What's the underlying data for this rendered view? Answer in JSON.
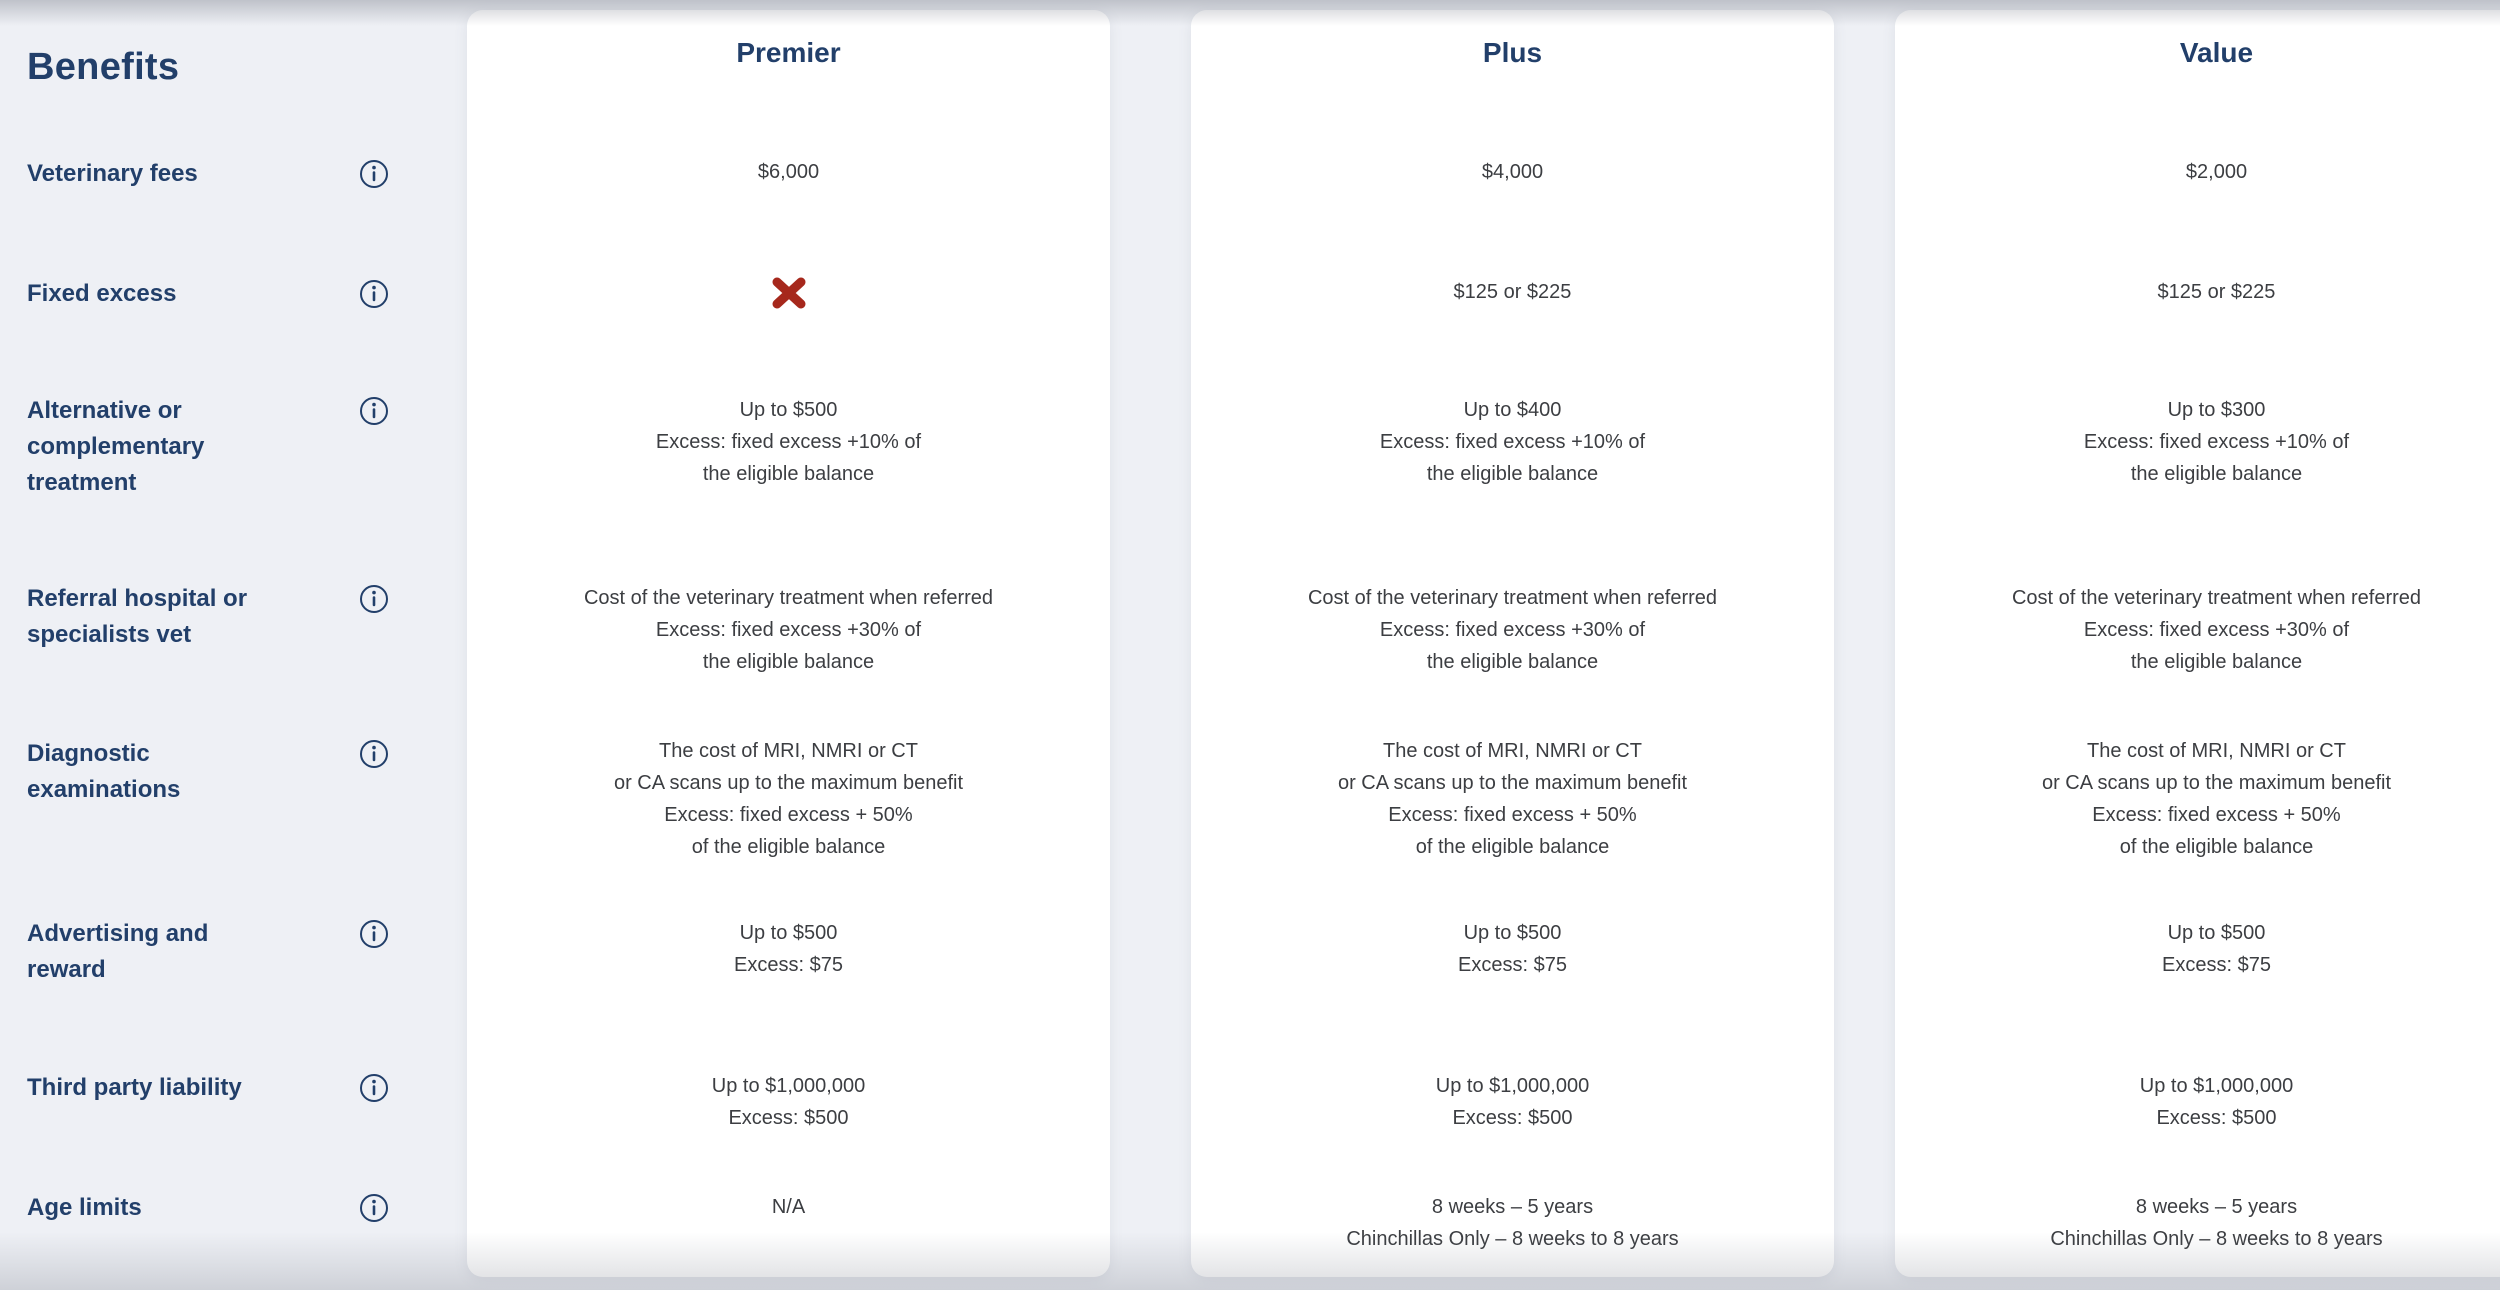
{
  "header": {
    "title": "Benefits"
  },
  "colors": {
    "brand_navy": "#223f6a",
    "body_text": "#3c3e42",
    "not_covered_red": "#a6281c",
    "page_background": "#eef0f5",
    "card_background": "#ffffff"
  },
  "icons": {
    "info": "info-circle-icon",
    "not_covered": "x-mark-icon"
  },
  "labels": [
    {
      "id": "veterinary-fees",
      "lines": [
        "Veterinary fees"
      ]
    },
    {
      "id": "fixed-excess",
      "lines": [
        "Fixed excess"
      ]
    },
    {
      "id": "alternative-or-complementary-treatment",
      "lines": [
        "Alternative or",
        "complementary",
        "treatment"
      ]
    },
    {
      "id": "referral-hospital-or-specialists-vet",
      "lines": [
        "Referral hospital or",
        "specialists vet"
      ]
    },
    {
      "id": "diagnostic-examinations",
      "lines": [
        "Diagnostic",
        "examinations"
      ]
    },
    {
      "id": "advertising-and-reward",
      "lines": [
        "Advertising and",
        "reward"
      ]
    },
    {
      "id": "third-party-liability",
      "lines": [
        "Third party liability"
      ]
    },
    {
      "id": "age-limits",
      "lines": [
        "Age limits"
      ]
    }
  ],
  "plans": [
    {
      "name": "Premier",
      "rows": [
        {
          "lines": [
            "$6,000"
          ]
        },
        {
          "icon": "x-mark",
          "meaning": "not covered"
        },
        {
          "lines": [
            "Up to $500",
            "Excess: fixed excess +10% of",
            "the eligible balance"
          ]
        },
        {
          "lines": [
            "Cost of the veterinary treatment when referred",
            "Excess: fixed excess +30% of",
            "the eligible balance"
          ]
        },
        {
          "lines": [
            "The cost of MRI, NMRI or CT",
            "or CA scans up to the maximum benefit",
            "Excess: fixed excess + 50%",
            "of the eligible balance"
          ]
        },
        {
          "lines": [
            "Up to $500",
            "Excess: $75"
          ]
        },
        {
          "lines": [
            "Up to $1,000,000",
            "Excess: $500"
          ]
        },
        {
          "lines": [
            "N/A"
          ]
        }
      ]
    },
    {
      "name": "Plus",
      "rows": [
        {
          "lines": [
            "$4,000"
          ]
        },
        {
          "lines": [
            "$125 or $225"
          ]
        },
        {
          "lines": [
            "Up to $400",
            "Excess: fixed excess +10% of",
            "the eligible balance"
          ]
        },
        {
          "lines": [
            "Cost of the veterinary treatment when referred",
            "Excess: fixed excess +30% of",
            "the eligible balance"
          ]
        },
        {
          "lines": [
            "The cost of MRI, NMRI or CT",
            "or CA scans up to the maximum benefit",
            "Excess: fixed excess + 50%",
            "of the eligible balance"
          ]
        },
        {
          "lines": [
            "Up to $500",
            "Excess: $75"
          ]
        },
        {
          "lines": [
            "Up to $1,000,000",
            "Excess: $500"
          ]
        },
        {
          "lines": [
            "8 weeks – 5 years",
            "Chinchillas Only – 8 weeks to 8 years"
          ]
        }
      ]
    },
    {
      "name": "Value",
      "rows": [
        {
          "lines": [
            "$2,000"
          ]
        },
        {
          "lines": [
            "$125 or $225"
          ]
        },
        {
          "lines": [
            "Up to $300",
            "Excess: fixed excess +10% of",
            "the eligible balance"
          ]
        },
        {
          "lines": [
            "Cost of the veterinary treatment when referred",
            "Excess: fixed excess +30% of",
            "the eligible balance"
          ]
        },
        {
          "lines": [
            "The cost of MRI, NMRI or CT",
            "or CA scans up to the maximum benefit",
            "Excess: fixed excess + 50%",
            "of the eligible balance"
          ]
        },
        {
          "lines": [
            "Up to $500",
            "Excess: $75"
          ]
        },
        {
          "lines": [
            "Up to $1,000,000",
            "Excess: $500"
          ]
        },
        {
          "lines": [
            "8 weeks – 5 years",
            "Chinchillas Only – 8 weeks to 8 years"
          ]
        }
      ]
    }
  ]
}
